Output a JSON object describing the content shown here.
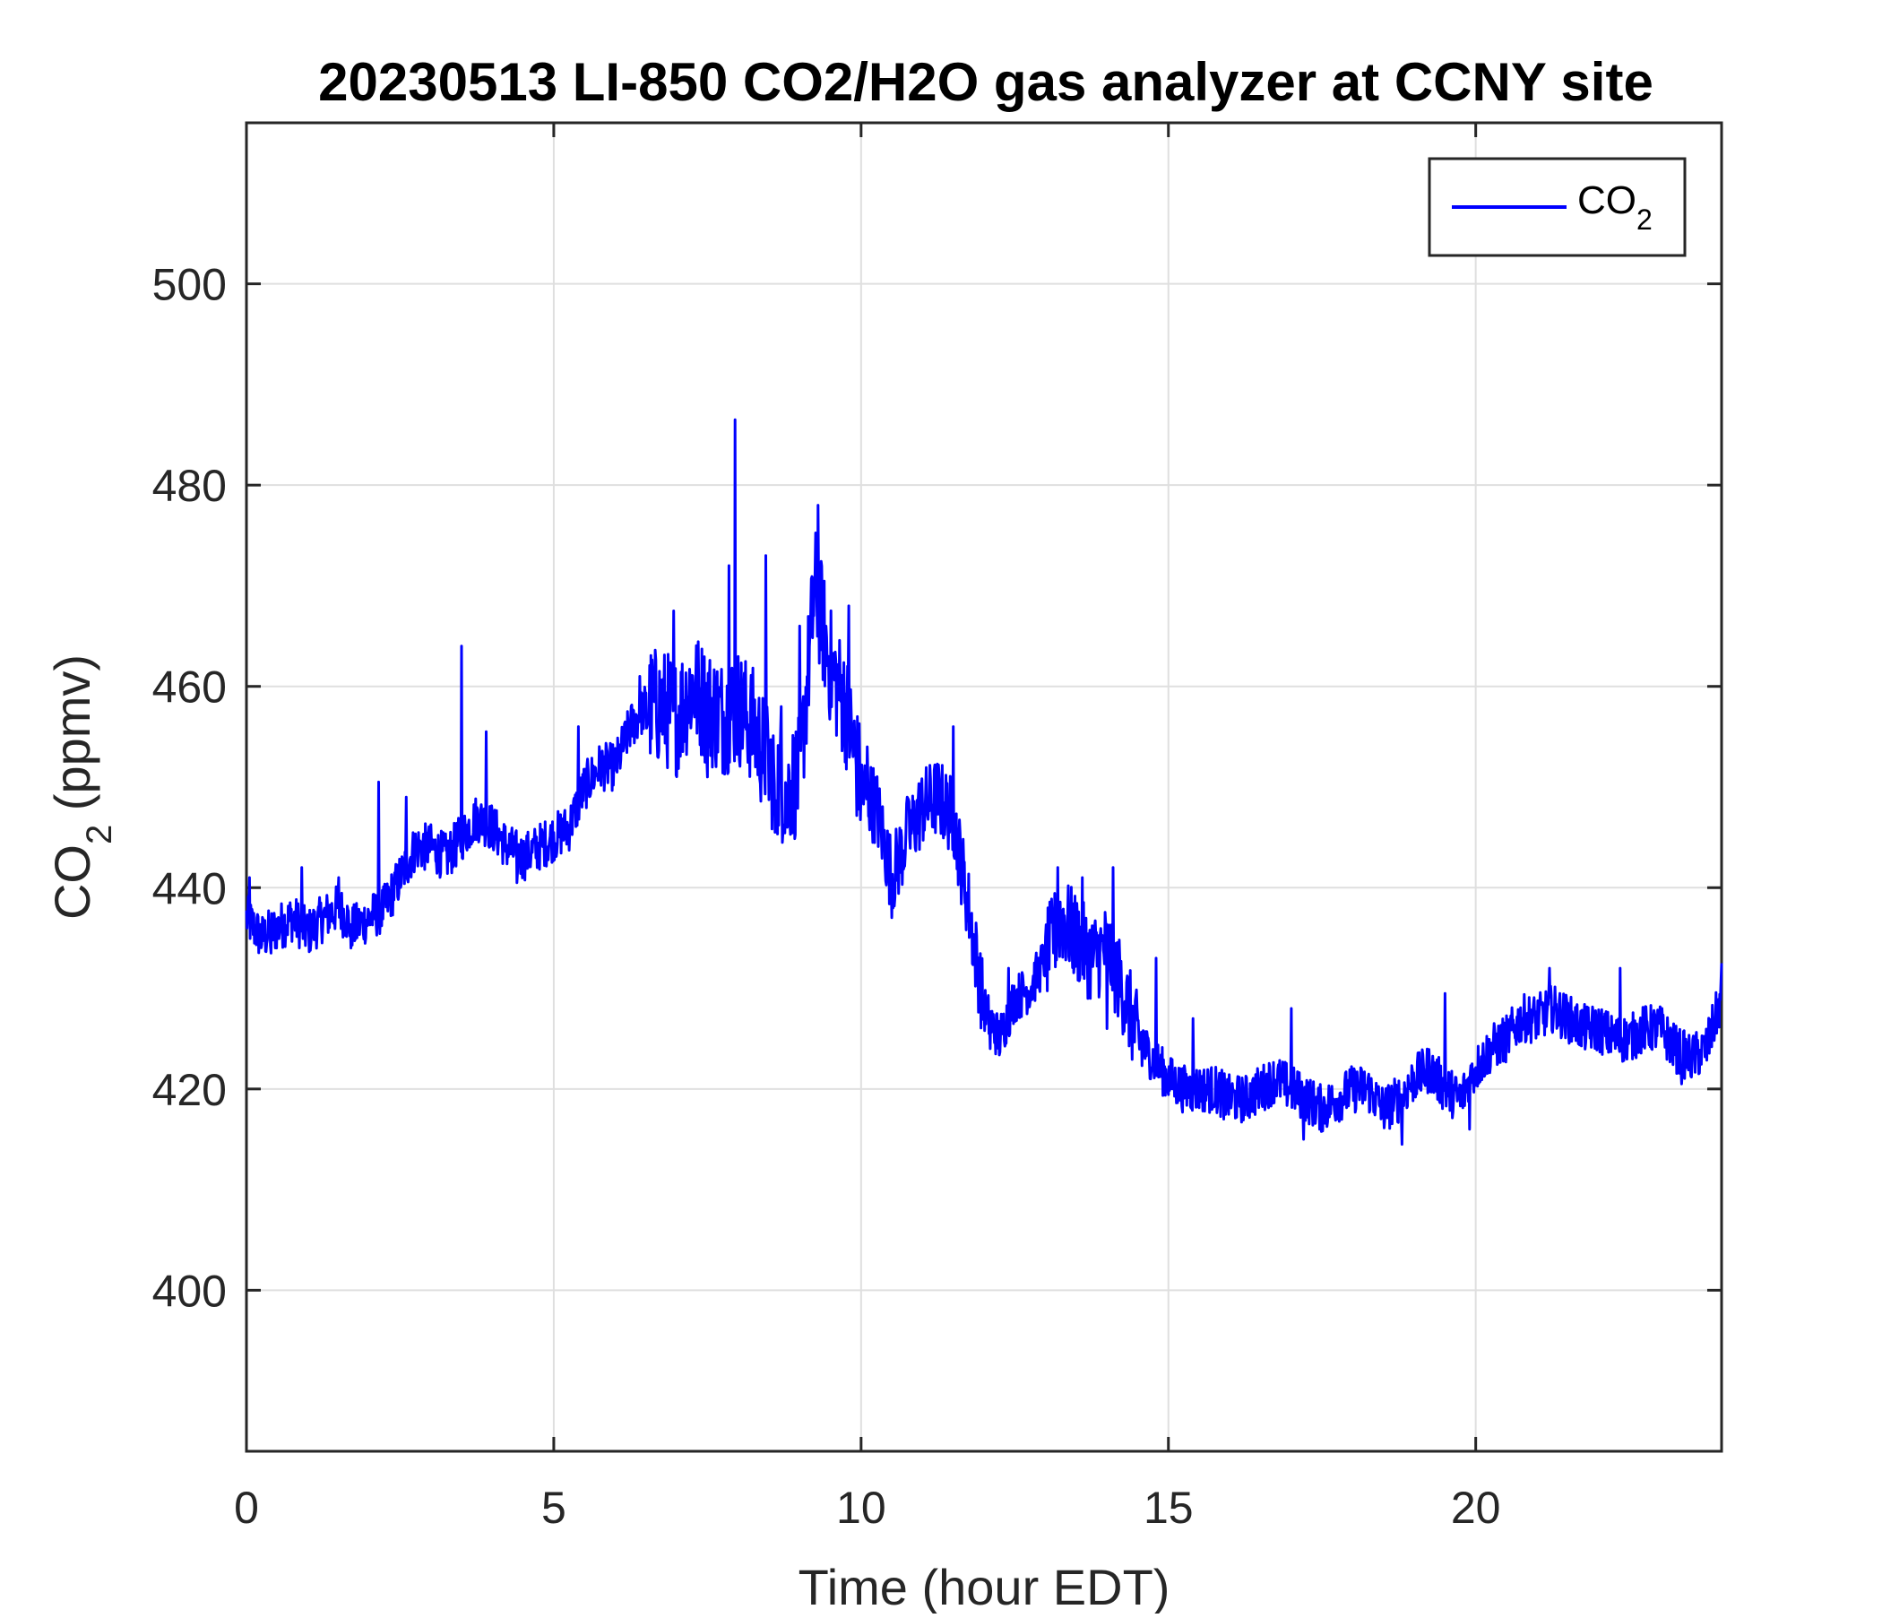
{
  "chart_data": {
    "type": "line",
    "title": "20230513 LI-850 CO2/H2O gas analyzer at CCNY site",
    "xlabel": "Time (hour EDT)",
    "ylabel": {
      "prefix": "CO",
      "subscript": "2",
      "suffix": " (ppmv)"
    },
    "xlim": [
      0,
      24
    ],
    "ylim": [
      384,
      516
    ],
    "x_ticks": [
      0,
      5,
      10,
      15,
      20
    ],
    "y_ticks": [
      400,
      420,
      440,
      460,
      480,
      500
    ],
    "grid": true,
    "legend": {
      "placement": "top-right",
      "label_prefix": "CO",
      "label_subscript": "2"
    },
    "colors": {
      "series": "#0000ff",
      "axes": "#262626",
      "grid": "#dfdfdf"
    },
    "series": [
      {
        "name": "CO2",
        "x": [
          0,
          0.25,
          0.5,
          0.75,
          1,
          1.25,
          1.5,
          1.75,
          2,
          2.25,
          2.5,
          2.75,
          3,
          3.25,
          3.5,
          3.75,
          4,
          4.25,
          4.5,
          4.75,
          5,
          5.25,
          5.5,
          5.75,
          6,
          6.25,
          6.5,
          6.75,
          7,
          7.25,
          7.5,
          7.75,
          8,
          8.25,
          8.5,
          8.75,
          9,
          9.25,
          9.5,
          9.75,
          10,
          10.25,
          10.5,
          10.75,
          11,
          11.25,
          11.5,
          11.75,
          12,
          12.25,
          12.5,
          12.75,
          13,
          13.25,
          13.5,
          13.75,
          14,
          14.25,
          14.5,
          14.75,
          15,
          15.25,
          15.5,
          15.75,
          16,
          16.25,
          16.5,
          16.75,
          17,
          17.25,
          17.5,
          17.75,
          18,
          18.25,
          18.5,
          18.75,
          19,
          19.25,
          19.5,
          19.75,
          20,
          20.25,
          20.5,
          20.75,
          21,
          21.25,
          21.5,
          21.75,
          22,
          22.25,
          22.5,
          22.75,
          23,
          23.25,
          23.5,
          23.75,
          24
        ],
        "y": [
          437,
          435,
          436,
          437,
          435.5,
          437,
          438,
          436,
          437,
          438,
          441,
          444,
          444,
          443,
          445,
          447,
          446,
          444,
          443,
          444,
          445,
          446,
          450,
          452,
          452,
          456,
          458,
          458,
          457,
          460,
          458,
          457,
          458,
          456,
          452,
          450,
          451,
          470,
          462,
          458,
          450,
          448,
          441,
          445,
          448,
          449,
          447,
          438,
          428,
          425,
          429,
          430,
          433,
          437,
          435,
          433,
          434,
          430,
          425,
          423,
          421,
          420,
          420,
          420,
          419,
          419,
          420,
          421,
          420,
          419,
          418,
          419,
          420,
          420,
          418,
          419,
          421,
          422,
          420,
          419,
          422,
          424,
          425,
          427,
          427,
          428,
          427,
          426,
          426,
          425,
          425,
          426,
          426,
          424,
          423,
          424,
          429
        ],
        "spikes": [
          {
            "x": 0.05,
            "y": 441
          },
          {
            "x": 0.9,
            "y": 442
          },
          {
            "x": 1.5,
            "y": 441
          },
          {
            "x": 2.15,
            "y": 450.5
          },
          {
            "x": 2.6,
            "y": 449
          },
          {
            "x": 3.5,
            "y": 464
          },
          {
            "x": 3.9,
            "y": 455.5
          },
          {
            "x": 5.4,
            "y": 456
          },
          {
            "x": 6.4,
            "y": 461
          },
          {
            "x": 6.95,
            "y": 467.5
          },
          {
            "x": 7.5,
            "y": 473
          },
          {
            "x": 7.85,
            "y": 472
          },
          {
            "x": 7.95,
            "y": 486.5
          },
          {
            "x": 8.45,
            "y": 473
          },
          {
            "x": 8.7,
            "y": 458
          },
          {
            "x": 9.0,
            "y": 466
          },
          {
            "x": 9.3,
            "y": 478
          },
          {
            "x": 9.8,
            "y": 468
          },
          {
            "x": 10.1,
            "y": 454
          },
          {
            "x": 10.75,
            "y": 449
          },
          {
            "x": 11.5,
            "y": 456
          },
          {
            "x": 12.4,
            "y": 432
          },
          {
            "x": 13.2,
            "y": 442
          },
          {
            "x": 13.6,
            "y": 441
          },
          {
            "x": 14.1,
            "y": 442
          },
          {
            "x": 14.8,
            "y": 433
          },
          {
            "x": 15.4,
            "y": 427
          },
          {
            "x": 17.0,
            "y": 428
          },
          {
            "x": 19.5,
            "y": 429.5
          },
          {
            "x": 21.2,
            "y": 432
          },
          {
            "x": 22.35,
            "y": 432
          },
          {
            "x": 24.0,
            "y": 432.5
          }
        ],
        "dips": [
          {
            "x": 0.4,
            "y": 433.5
          },
          {
            "x": 1.7,
            "y": 434
          },
          {
            "x": 4.4,
            "y": 440.5
          },
          {
            "x": 7.5,
            "y": 451
          },
          {
            "x": 8.6,
            "y": 445.5
          },
          {
            "x": 8.8,
            "y": 446
          },
          {
            "x": 10.55,
            "y": 439
          },
          {
            "x": 12.1,
            "y": 424
          },
          {
            "x": 14.0,
            "y": 426
          },
          {
            "x": 15.9,
            "y": 417
          },
          {
            "x": 17.2,
            "y": 415
          },
          {
            "x": 18.8,
            "y": 414.5
          },
          {
            "x": 19.9,
            "y": 416
          },
          {
            "x": 23.35,
            "y": 420.5
          }
        ]
      }
    ]
  }
}
